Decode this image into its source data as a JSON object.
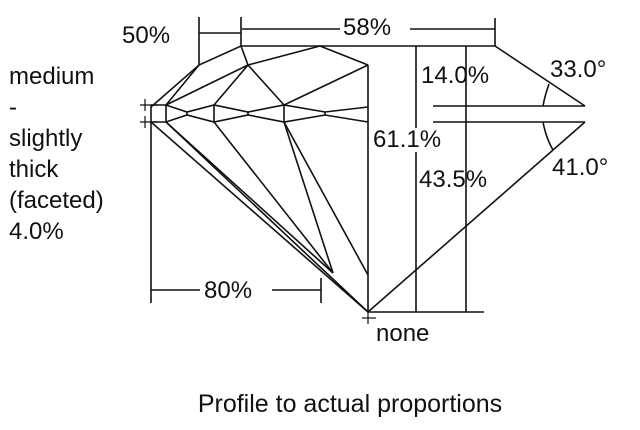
{
  "labels": {
    "table_width": "58%",
    "star_length": "50%",
    "crown_height": "14.0%",
    "crown_angle": "33.0°",
    "total_depth": "61.1%",
    "pavilion_depth": "43.5%",
    "pavilion_angle": "41.0°",
    "lower_half_length": "80%",
    "culet": "none",
    "girdle": [
      "medium",
      "-",
      "slightly",
      "thick",
      "(faceted)",
      "4.0%"
    ]
  },
  "caption": "Profile to actual proportions"
}
